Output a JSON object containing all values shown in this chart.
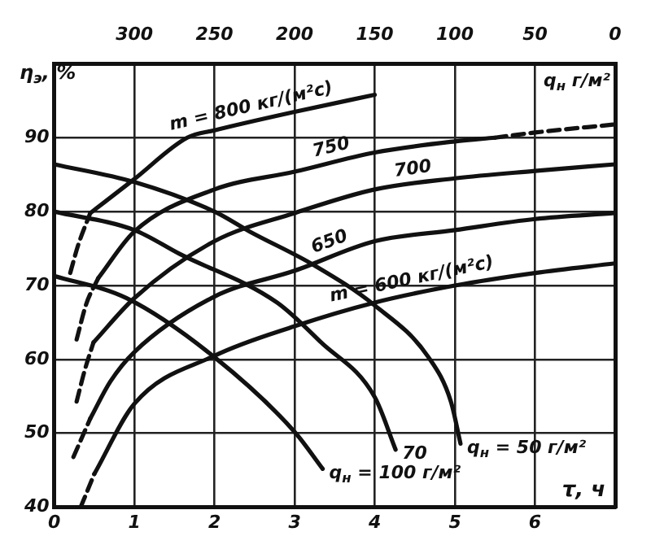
{
  "chart_data": {
    "type": "line",
    "xlabel": "τ, ч",
    "ylabel": "η$_{э}$, %",
    "x2label": "q$_{н}$ г/м²",
    "xlim": [
      0,
      7
    ],
    "xticks": [
      0,
      1,
      2,
      3,
      4,
      5,
      6
    ],
    "x2lim": [
      350,
      0
    ],
    "x2ticks": [
      300,
      250,
      200,
      150,
      100,
      50,
      0
    ],
    "ylim": [
      40,
      100
    ],
    "yticks": [
      40,
      50,
      60,
      70,
      80,
      90
    ],
    "grid": true,
    "legend": false,
    "marker": "none",
    "series": [
      {
        "name": "m = 800 кг/(м²с)",
        "color": "#111111",
        "x": [
          0.45,
          1,
          1.66,
          2,
          3,
          4
        ],
        "values": [
          79.8,
          84.4,
          90,
          91,
          93.5,
          95.8
        ]
      },
      {
        "color": "#111111",
        "line_style": "dashed",
        "x": [
          0.2,
          0.3,
          0.45
        ],
        "values": [
          71.7,
          75.5,
          79.8
        ]
      },
      {
        "name": "750",
        "color": "#111111",
        "x": [
          0.55,
          1,
          2,
          3,
          4,
          5,
          5.5
        ],
        "values": [
          71,
          77.3,
          83,
          85.4,
          88,
          89.5,
          90
        ]
      },
      {
        "color": "#111111",
        "line_style": "dashed",
        "x": [
          0.28,
          0.4,
          0.55
        ],
        "values": [
          62.7,
          67.5,
          71
        ]
      },
      {
        "color": "#111111",
        "line_style": "dashed",
        "x": [
          5.5,
          6,
          7
        ],
        "values": [
          90,
          90.7,
          91.8
        ]
      },
      {
        "name": "700",
        "color": "#111111",
        "x": [
          0.49,
          1,
          2,
          3,
          4,
          5,
          6,
          7
        ],
        "values": [
          62.3,
          68.3,
          76,
          79.8,
          83,
          84.5,
          85.5,
          86.4
        ]
      },
      {
        "color": "#111111",
        "line_style": "dashed",
        "x": [
          0.28,
          0.38,
          0.49
        ],
        "values": [
          54.3,
          58.5,
          62.3
        ]
      },
      {
        "name": "650",
        "color": "#111111",
        "x": [
          0.45,
          0.7,
          1,
          2,
          3,
          4,
          5,
          6,
          7
        ],
        "values": [
          52,
          57,
          61,
          68.5,
          72,
          76,
          77.5,
          79,
          79.8
        ]
      },
      {
        "color": "#111111",
        "line_style": "dashed",
        "x": [
          0.24,
          0.45
        ],
        "values": [
          46.8,
          52
        ]
      },
      {
        "name": "m = 600 кг/(м²с)",
        "color": "#111111",
        "x": [
          0.5,
          1,
          2,
          3,
          4,
          5,
          6,
          7
        ],
        "values": [
          44.5,
          54,
          60.5,
          64.5,
          67.7,
          70,
          71.7,
          73
        ]
      },
      {
        "color": "#111111",
        "line_style": "dashed",
        "x": [
          0.33,
          0.5
        ],
        "values": [
          40,
          44.5
        ]
      },
      {
        "name": "q$_{н}$ = 100 г/м²",
        "color": "#111111",
        "x": [
          0,
          0.9,
          2,
          3,
          3.35
        ],
        "values": [
          71.3,
          68.3,
          60.3,
          50.2,
          45.2
        ]
      },
      {
        "name": "70",
        "color": "#111111",
        "x": [
          0,
          1,
          1.56,
          2.78,
          3.33,
          4,
          4.26
        ],
        "values": [
          80,
          77.5,
          74.3,
          67.7,
          62.3,
          54.9,
          47.8
        ]
      },
      {
        "name": "q$_{н}$ = 50 г/м²",
        "color": "#111111",
        "x": [
          0,
          1,
          2,
          2.44,
          3.25,
          4,
          4.67,
          4.95,
          5.07
        ],
        "values": [
          86.4,
          84,
          80,
          77.3,
          72.7,
          67.3,
          60.3,
          54.3,
          48.6
        ]
      }
    ]
  }
}
